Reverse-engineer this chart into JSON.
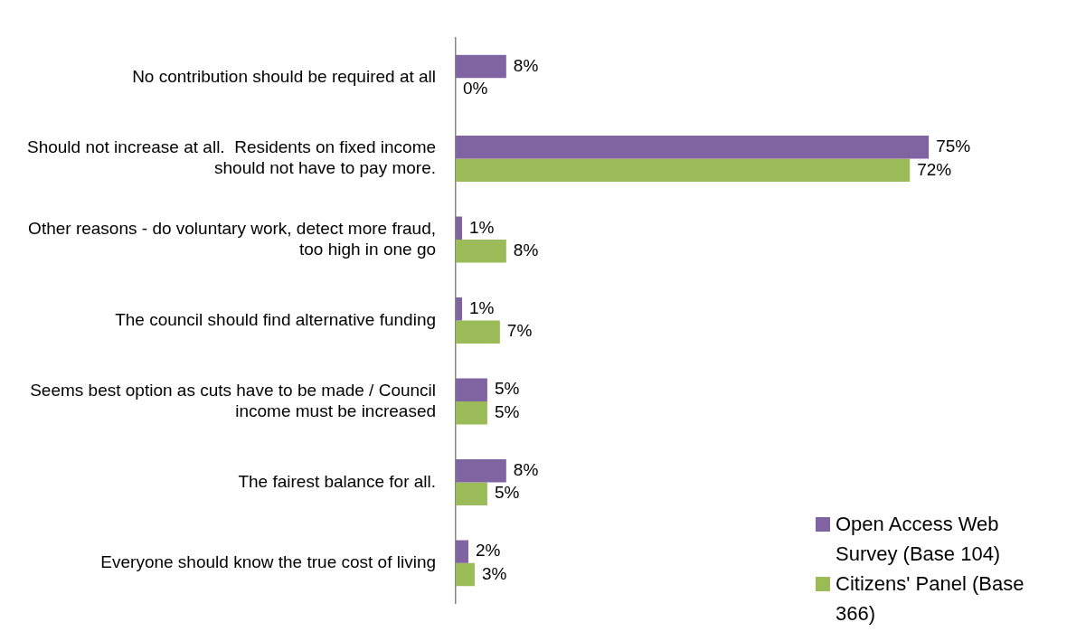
{
  "chart_data": {
    "type": "bar",
    "orientation": "horizontal",
    "categories": [
      "No contribution should be required at all",
      "Should not increase at all.  Residents on fixed income should not have to pay more.",
      "Other reasons - do voluntary work, detect more fraud, too high in one go",
      "The council should find alternative funding",
      "Seems best option as cuts have to be made / Council income must be increased",
      "The fairest balance for all.",
      "Everyone should know the true cost of living"
    ],
    "series": [
      {
        "name": "Open Access Web Survey (Base 104)",
        "color": "#8064a2",
        "values": [
          8,
          75,
          1,
          1,
          5,
          8,
          2
        ],
        "value_labels": [
          "8%",
          "75%",
          "1%",
          "1%",
          "5%",
          "8%",
          "2%"
        ]
      },
      {
        "name": "Citizens' Panel (Base 366)",
        "color": "#9bbb59",
        "values": [
          0,
          72,
          8,
          7,
          5,
          5,
          3
        ],
        "value_labels": [
          "0%",
          "72%",
          "8%",
          "7%",
          "5%",
          "5%",
          "3%"
        ]
      }
    ],
    "grid": false,
    "legend": "bottom right"
  }
}
